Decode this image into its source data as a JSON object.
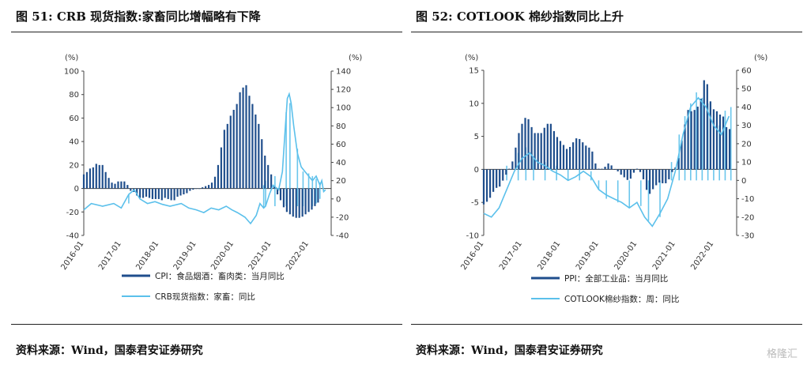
{
  "charts": [
    {
      "title": "图 51: CRB 现货指数:家畜同比增幅略有下降",
      "source": "资料来源：Wind，国泰君安证券研究",
      "colors": {
        "bar": "#1f4e8c",
        "line": "#5bc0eb"
      },
      "chart_data": {
        "type": "bar+line",
        "x_tick_labels": [
          "2016-01",
          "2017-01",
          "2018-01",
          "2019-01",
          "2020-01",
          "2021-01",
          "2022-01"
        ],
        "left_axis": {
          "unit": "(%)",
          "ylim": [
            -40,
            100
          ],
          "ticks": [
            "-40",
            "-20",
            "0",
            "20",
            "40",
            "60",
            "80",
            "100"
          ]
        },
        "right_axis": {
          "unit": "(%)",
          "ylim": [
            -40,
            140
          ],
          "ticks": [
            "-40",
            "-20",
            "0",
            "20",
            "40",
            "60",
            "80",
            "100",
            "120",
            "140"
          ]
        },
        "series": [
          {
            "name": "CPI：食品烟酒：畜肉类：当月同比",
            "kind": "bar",
            "axis": "left",
            "start": "2016-01",
            "values": [
              12,
              14,
              17,
              18,
              21,
              20,
              20,
              14,
              9,
              5,
              4,
              6,
              6,
              6,
              3,
              -2,
              -3,
              -6,
              -8,
              -8,
              -7,
              -8,
              -9,
              -9,
              -9,
              -10,
              -8,
              -9,
              -10,
              -10,
              -7,
              -6,
              -5,
              -4,
              -2,
              -1,
              0,
              0,
              1,
              2,
              3,
              5,
              10,
              20,
              35,
              50,
              55,
              62,
              67,
              72,
              82,
              86,
              88,
              79,
              72,
              63,
              55,
              42,
              28,
              20,
              12,
              2,
              -5,
              -10,
              -16,
              -20,
              -22,
              -24,
              -25,
              -25,
              -24,
              -22,
              -20,
              -18,
              -15,
              -12
            ]
          },
          {
            "name": "CRB现货指数：家畜：同比",
            "kind": "line",
            "axis": "right",
            "points": [
              [
                2016.0,
                -12
              ],
              [
                2016.2,
                -5
              ],
              [
                2016.5,
                -8
              ],
              [
                2016.8,
                -5
              ],
              [
                2017.0,
                -10
              ],
              [
                2017.2,
                5
              ],
              [
                2017.35,
                10
              ],
              [
                2017.5,
                0
              ],
              [
                2017.7,
                -5
              ],
              [
                2017.9,
                -3
              ],
              [
                2018.1,
                -6
              ],
              [
                2018.3,
                -8
              ],
              [
                2018.6,
                -5
              ],
              [
                2018.8,
                -10
              ],
              [
                2019.0,
                -12
              ],
              [
                2019.2,
                -15
              ],
              [
                2019.4,
                -10
              ],
              [
                2019.6,
                -12
              ],
              [
                2019.8,
                -8
              ],
              [
                2019.95,
                -12
              ],
              [
                2020.1,
                -15
              ],
              [
                2020.3,
                -20
              ],
              [
                2020.45,
                -27
              ],
              [
                2020.6,
                -18
              ],
              [
                2020.7,
                -5
              ],
              [
                2020.8,
                -10
              ],
              [
                2020.85,
                -8
              ],
              [
                2020.95,
                5
              ],
              [
                2021.05,
                15
              ],
              [
                2021.2,
                10
              ],
              [
                2021.3,
                30
              ],
              [
                2021.38,
                80
              ],
              [
                2021.43,
                110
              ],
              [
                2021.48,
                115
              ],
              [
                2021.53,
                105
              ],
              [
                2021.6,
                80
              ],
              [
                2021.7,
                50
              ],
              [
                2021.8,
                35
              ],
              [
                2021.9,
                30
              ],
              [
                2022.0,
                25
              ],
              [
                2022.1,
                20
              ],
              [
                2022.2,
                25
              ],
              [
                2022.3,
                15
              ],
              [
                2022.35,
                20
              ],
              [
                2022.4,
                8
              ],
              [
                2022.45,
                10
              ]
            ]
          }
        ],
        "spike_series": {
          "series": 1,
          "points": [
            [
              2017.2,
              -5,
              5
            ],
            [
              2020.8,
              -10,
              15
            ],
            [
              2020.85,
              -8,
              20
            ],
            [
              2021.1,
              -8,
              25
            ],
            [
              2021.4,
              -8,
              95
            ],
            [
              2021.5,
              -8,
              105
            ],
            [
              2021.7,
              -8,
              55
            ],
            [
              2021.85,
              -8,
              30
            ],
            [
              2022.0,
              -8,
              28
            ],
            [
              2022.1,
              -8,
              25
            ],
            [
              2022.2,
              -5,
              22
            ],
            [
              2022.3,
              0,
              18
            ]
          ]
        },
        "legend": [
          "CPI：食品烟酒：畜肉类：当月同比",
          "CRB现货指数：家畜：同比"
        ]
      }
    },
    {
      "title": "图 52: COTLOOK 棉纱指数同比上升",
      "source": "资料来源：Wind，国泰君安证券研究",
      "colors": {
        "bar": "#1f4e8c",
        "line": "#5bc0eb"
      },
      "chart_data": {
        "type": "bar+line",
        "x_tick_labels": [
          "2016-01",
          "2017-01",
          "2018-01",
          "2019-01",
          "2020-01",
          "2021-01",
          "2022-01"
        ],
        "left_axis": {
          "unit": "(%)",
          "ylim": [
            -10,
            15
          ],
          "ticks": [
            "-10",
            "-5",
            "0",
            "5",
            "10",
            "15"
          ]
        },
        "right_axis": {
          "unit": "(%)",
          "ylim": [
            -30,
            60
          ],
          "ticks": [
            "-30",
            "-20",
            "-10",
            "0",
            "10",
            "20",
            "30",
            "40",
            "50",
            "60"
          ]
        },
        "series": [
          {
            "name": "PPI：全部工业品：当月同比",
            "kind": "bar",
            "axis": "left",
            "start": "2016-01",
            "values": [
              -5.3,
              -4.9,
              -4.3,
              -3.4,
              -2.8,
              -2.6,
              -1.7,
              -0.8,
              0.1,
              1.2,
              3.3,
              5.5,
              6.9,
              7.8,
              7.6,
              6.4,
              5.5,
              5.5,
              5.5,
              6.3,
              6.9,
              6.9,
              5.8,
              4.9,
              4.3,
              3.7,
              3.1,
              3.4,
              4.1,
              4.7,
              4.6,
              4.1,
              3.6,
              3.3,
              2.7,
              0.9,
              0.1,
              0.1,
              0.4,
              0.9,
              0.6,
              0.0,
              -0.3,
              -0.8,
              -1.2,
              -1.6,
              -1.4,
              -0.5,
              0.1,
              -0.4,
              -1.5,
              -3.1,
              -3.7,
              -3.0,
              -2.4,
              -2.0,
              -2.1,
              -2.1,
              -1.5,
              -0.4,
              0.3,
              1.7,
              4.4,
              6.8,
              9.0,
              8.8,
              9.0,
              9.5,
              10.7,
              13.5,
              12.9,
              10.3,
              9.1,
              8.8,
              8.3,
              8.0,
              6.4,
              6.1
            ]
          },
          {
            "name": "COTLOOK棉纱指数：周：同比",
            "kind": "line",
            "axis": "right",
            "points": [
              [
                2016.0,
                -18
              ],
              [
                2016.2,
                -20
              ],
              [
                2016.4,
                -15
              ],
              [
                2016.6,
                -5
              ],
              [
                2016.8,
                5
              ],
              [
                2017.0,
                12
              ],
              [
                2017.2,
                15
              ],
              [
                2017.4,
                10
              ],
              [
                2017.6,
                8
              ],
              [
                2017.8,
                5
              ],
              [
                2018.0,
                3
              ],
              [
                2018.2,
                0
              ],
              [
                2018.4,
                2
              ],
              [
                2018.6,
                5
              ],
              [
                2018.8,
                2
              ],
              [
                2019.0,
                -5
              ],
              [
                2019.2,
                -8
              ],
              [
                2019.4,
                -10
              ],
              [
                2019.6,
                -12
              ],
              [
                2019.8,
                -15
              ],
              [
                2020.0,
                -12
              ],
              [
                2020.2,
                -20
              ],
              [
                2020.4,
                -25
              ],
              [
                2020.6,
                -18
              ],
              [
                2020.8,
                -10
              ],
              [
                2021.0,
                5
              ],
              [
                2021.2,
                25
              ],
              [
                2021.4,
                40
              ],
              [
                2021.6,
                45
              ],
              [
                2021.8,
                40
              ],
              [
                2022.0,
                30
              ],
              [
                2022.2,
                25
              ],
              [
                2022.4,
                35
              ]
            ]
          }
        ],
        "spike_series": {
          "series": 1,
          "points": [
            [
              2016.6,
              0,
              8
            ],
            [
              2016.9,
              0,
              15
            ],
            [
              2017.1,
              0,
              18
            ],
            [
              2017.3,
              0,
              12
            ],
            [
              2017.6,
              0,
              10
            ],
            [
              2017.9,
              0,
              8
            ],
            [
              2018.2,
              0,
              6
            ],
            [
              2018.5,
              0,
              7
            ],
            [
              2018.8,
              0,
              5
            ],
            [
              2019.0,
              -5,
              0
            ],
            [
              2019.2,
              -10,
              0
            ],
            [
              2019.5,
              -12,
              0
            ],
            [
              2019.8,
              -15,
              0
            ],
            [
              2020.1,
              -14,
              0
            ],
            [
              2020.3,
              -22,
              0
            ],
            [
              2020.6,
              -20,
              0
            ],
            [
              2020.9,
              0,
              10
            ],
            [
              2021.1,
              0,
              25
            ],
            [
              2021.25,
              0,
              35
            ],
            [
              2021.4,
              0,
              42
            ],
            [
              2021.55,
              0,
              48
            ],
            [
              2021.7,
              0,
              45
            ],
            [
              2021.85,
              0,
              42
            ],
            [
              2022.0,
              0,
              35
            ],
            [
              2022.15,
              0,
              30
            ],
            [
              2022.3,
              0,
              38
            ],
            [
              2022.45,
              0,
              40
            ]
          ]
        },
        "legend": [
          "PPI：全部工业品：当月同比",
          "COTLOOK棉纱指数：周：同比"
        ]
      }
    }
  ],
  "watermark": "格隆汇"
}
